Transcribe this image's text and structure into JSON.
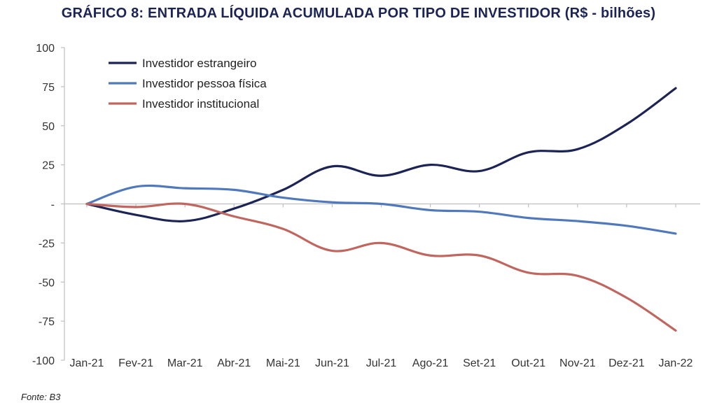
{
  "chart_data": {
    "type": "line",
    "title": "GRÁFICO 8: ENTRADA LÍQUIDA ACUMULADA POR TIPO DE INVESTIDOR (R$ - bilhões)",
    "source": "Fonte: B3",
    "categories": [
      "Jan-21",
      "Fev-21",
      "Mar-21",
      "Abr-21",
      "Mai-21",
      "Jun-21",
      "Jul-21",
      "Ago-21",
      "Set-21",
      "Out-21",
      "Nov-21",
      "Dez-21",
      "Jan-22"
    ],
    "ylim": [
      -100,
      100
    ],
    "y_ticks": [
      100,
      75,
      50,
      25,
      0,
      -25,
      -50,
      -75,
      -100
    ],
    "y_tick_labels": [
      "100",
      "75",
      "50",
      "25",
      "-",
      "-25",
      "-50",
      "-75",
      "-100"
    ],
    "grid": false,
    "legend_position": "top-left",
    "series": [
      {
        "name": "Investidor estrangeiro",
        "color": "#1b2455",
        "values": [
          0,
          -7,
          -11,
          -3,
          9,
          24,
          18,
          25,
          21,
          33,
          35,
          51,
          74
        ]
      },
      {
        "name": "Investidor pessoa física",
        "color": "#4f79bc",
        "values": [
          0,
          11,
          10,
          9,
          4,
          1,
          0,
          -4,
          -5,
          -9,
          -11,
          -14,
          -19
        ]
      },
      {
        "name": "Investidor institucional",
        "color": "#c1665f",
        "values": [
          0,
          -2,
          0,
          -8,
          -16,
          -30,
          -25,
          -33,
          -33,
          -44,
          -46,
          -60,
          -81
        ]
      }
    ]
  }
}
